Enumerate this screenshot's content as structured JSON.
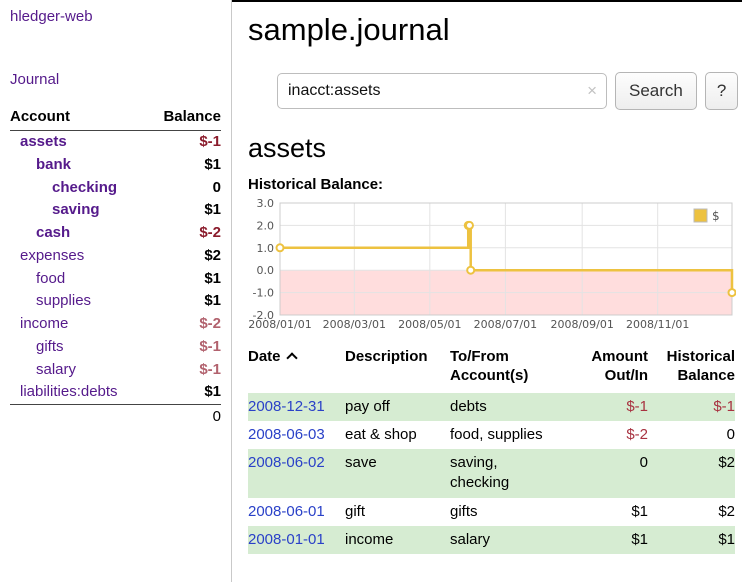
{
  "sidebar": {
    "app_title": "hledger-web",
    "journal_label": "Journal",
    "accounts": {
      "headers": [
        "Account",
        "Balance"
      ],
      "rows": [
        {
          "account": "assets",
          "balance": "$-1",
          "indent": 0,
          "bold": true,
          "negative": true
        },
        {
          "account": "bank",
          "balance": "$1",
          "indent": 1,
          "bold": true,
          "negative": false
        },
        {
          "account": "checking",
          "balance": "0",
          "indent": 2,
          "bold": true,
          "negative": false
        },
        {
          "account": "saving",
          "balance": "$1",
          "indent": 2,
          "bold": true,
          "negative": false
        },
        {
          "account": "cash",
          "balance": "$-2",
          "indent": 1,
          "bold": true,
          "negative": true
        },
        {
          "account": "expenses",
          "balance": "$2",
          "indent": 0,
          "bold": false,
          "negative": false
        },
        {
          "account": "food",
          "balance": "$1",
          "indent": 1,
          "bold": false,
          "negative": false
        },
        {
          "account": "supplies",
          "balance": "$1",
          "indent": 1,
          "bold": false,
          "negative": false
        },
        {
          "account": "income",
          "balance": "$-2",
          "indent": 0,
          "bold": false,
          "negative": true
        },
        {
          "account": "gifts",
          "balance": "$-1",
          "indent": 1,
          "bold": false,
          "negative": true
        },
        {
          "account": "salary",
          "balance": "$-1",
          "indent": 1,
          "bold": false,
          "negative": true
        },
        {
          "account": "liabilities:debts",
          "balance": "$1",
          "indent": 0,
          "bold": false,
          "negative": false
        }
      ],
      "total": "0"
    }
  },
  "header": {
    "title": "sample.journal"
  },
  "search": {
    "value": "inacct:assets",
    "clear_icon": "×",
    "button_label": "Search",
    "help_label": "?"
  },
  "section": {
    "heading": "assets",
    "chart_label": "Historical Balance:"
  },
  "chart_data": {
    "type": "line",
    "step": true,
    "title": "Historical Balance of assets",
    "series": [
      {
        "name": "$",
        "color": "#edc240",
        "points": [
          [
            "2008-01-01",
            1
          ],
          [
            "2008-06-01",
            2
          ],
          [
            "2008-06-02",
            2
          ],
          [
            "2008-06-03",
            0
          ],
          [
            "2008-12-31",
            -1
          ]
        ]
      }
    ],
    "x_range": [
      "2008-01-01",
      "2008-12-31"
    ],
    "ylim": [
      -2.0,
      3.0
    ],
    "yticks": [
      3.0,
      2.0,
      1.0,
      0.0,
      -1.0,
      -2.0
    ],
    "xticks": [
      "2008/01/01",
      "2008/03/01",
      "2008/05/01",
      "2008/07/01",
      "2008/09/01",
      "2008/11/01"
    ],
    "grid": true,
    "negative_region_color": "#ffdddd",
    "legend": {
      "label": "$",
      "position": "top-right"
    }
  },
  "register": {
    "headers": [
      "Date",
      "Description",
      "To/From Account(s)",
      "Amount Out/In",
      "Historical Balance"
    ],
    "sort_column": "Date",
    "sort_direction": "ascending",
    "rows": [
      {
        "date": "2008-12-31",
        "description": "pay off",
        "accounts": "debts",
        "amount": "$-1",
        "balance": "$-1",
        "amount_negative": true,
        "balance_negative": true,
        "highlighted": true
      },
      {
        "date": "2008-06-03",
        "description": "eat & shop",
        "accounts": "food, supplies",
        "amount": "$-2",
        "balance": "0",
        "amount_negative": true,
        "balance_negative": false,
        "highlighted": false
      },
      {
        "date": "2008-06-02",
        "description": "save",
        "accounts": "saving, checking",
        "amount": "0",
        "balance": "$2",
        "amount_negative": false,
        "balance_negative": false,
        "highlighted": true
      },
      {
        "date": "2008-06-01",
        "description": "gift",
        "accounts": "gifts",
        "amount": "$1",
        "balance": "$2",
        "amount_negative": false,
        "balance_negative": false,
        "highlighted": false
      },
      {
        "date": "2008-01-01",
        "description": "income",
        "accounts": "salary",
        "amount": "$1",
        "balance": "$1",
        "amount_negative": false,
        "balance_negative": false,
        "highlighted": true
      }
    ]
  },
  "colors": {
    "link_purple": "#551a8b",
    "date_link_blue": "#2a41c8",
    "negative_strong": "#8b1c2c",
    "negative_light": "#b2626e",
    "register_negative": "#a83240",
    "row_highlight_green": "#d6ecd2",
    "chart_line": "#edc240",
    "chart_negative_region": "#ffdddd"
  }
}
